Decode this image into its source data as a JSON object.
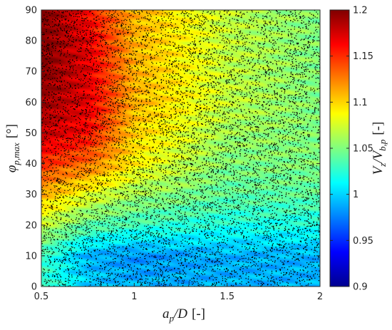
{
  "chart_data": {
    "type": "heatmap",
    "title": "",
    "x": {
      "label_main": "a",
      "label_sub": "p",
      "label_rest": "/D",
      "label_unit": "[-]",
      "range": [
        0.5,
        2.0
      ],
      "ticks": [
        0.5,
        1.0,
        1.5,
        2.0
      ],
      "tick_labels": [
        "0.5",
        "1",
        "1.5",
        "2"
      ]
    },
    "y": {
      "label_main": "φ",
      "label_sub": "p,max",
      "label_unit": "[°]",
      "range": [
        0,
        90
      ],
      "ticks": [
        0,
        10,
        20,
        30,
        40,
        50,
        60,
        70,
        80,
        90
      ],
      "tick_labels": [
        "0",
        "10",
        "20",
        "30",
        "40",
        "50",
        "60",
        "70",
        "80",
        "90"
      ]
    },
    "colorbar": {
      "label_main": "V",
      "label_sub1": "z",
      "label_mid": "/V",
      "label_sub2": "b,p",
      "label_unit": "[-]",
      "range": [
        0.9,
        1.2
      ],
      "ticks": [
        0.9,
        0.95,
        1.0,
        1.05,
        1.1,
        1.15,
        1.2
      ],
      "tick_labels": [
        "0.9",
        "0.95",
        "1",
        "1.05",
        "1.1",
        "1.15",
        "1.2"
      ],
      "colormap": "jet"
    },
    "field_grid": {
      "x": [
        0.5,
        0.75,
        1.0,
        1.5,
        2.0
      ],
      "y": [
        0,
        10,
        20,
        30,
        40,
        50,
        60,
        70,
        80,
        90
      ],
      "z": [
        [
          1.03,
          1.0,
          0.99,
          0.99,
          0.99
        ],
        [
          1.03,
          0.99,
          0.98,
          0.99,
          0.99
        ],
        [
          1.07,
          1.04,
          1.03,
          1.02,
          1.02
        ],
        [
          1.11,
          1.08,
          1.06,
          1.04,
          1.04
        ],
        [
          1.15,
          1.13,
          1.09,
          1.05,
          1.05
        ],
        [
          1.18,
          1.16,
          1.1,
          1.06,
          1.05
        ],
        [
          1.19,
          1.17,
          1.11,
          1.07,
          1.05
        ],
        [
          1.2,
          1.17,
          1.11,
          1.07,
          1.05
        ],
        [
          1.2,
          1.17,
          1.11,
          1.07,
          1.05
        ],
        [
          1.2,
          1.16,
          1.11,
          1.07,
          1.05
        ]
      ]
    },
    "samples": {
      "marker": "black dots",
      "approx_count": 10000,
      "distribution": "uniform over the plotted range"
    },
    "grid": false,
    "legend": "none"
  }
}
